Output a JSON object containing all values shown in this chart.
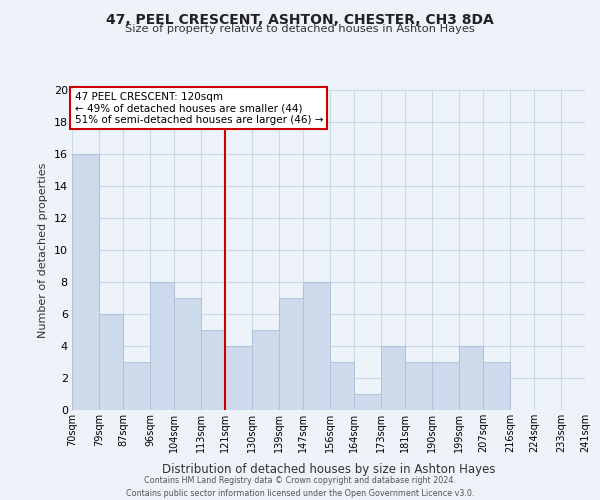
{
  "title": "47, PEEL CRESCENT, ASHTON, CHESTER, CH3 8DA",
  "subtitle": "Size of property relative to detached houses in Ashton Hayes",
  "xlabel": "Distribution of detached houses by size in Ashton Hayes",
  "ylabel": "Number of detached properties",
  "bins": [
    70,
    79,
    87,
    96,
    104,
    113,
    121,
    130,
    139,
    147,
    156,
    164,
    173,
    181,
    190,
    199,
    207,
    216,
    224,
    233,
    241
  ],
  "bin_labels": [
    "70sqm",
    "79sqm",
    "87sqm",
    "96sqm",
    "104sqm",
    "113sqm",
    "121sqm",
    "130sqm",
    "139sqm",
    "147sqm",
    "156sqm",
    "164sqm",
    "173sqm",
    "181sqm",
    "190sqm",
    "199sqm",
    "207sqm",
    "216sqm",
    "224sqm",
    "233sqm",
    "241sqm"
  ],
  "bar_heights": [
    16,
    6,
    3,
    8,
    7,
    5,
    4,
    5,
    7,
    8,
    3,
    1,
    4,
    3,
    3,
    4,
    3,
    0,
    0,
    0
  ],
  "bar_color": "#ccdaeb",
  "bar_edge_color": "#adc4dc",
  "grid_color": "#c8d8e8",
  "vline_x": 121,
  "vline_color": "#cc0000",
  "annotation_line1": "47 PEEL CRESCENT: 120sqm",
  "annotation_line2": "← 49% of detached houses are smaller (44)",
  "annotation_line3": "51% of semi-detached houses are larger (46) →",
  "annotation_box_color": "#ffffff",
  "annotation_box_edge": "#cc0000",
  "ylim": [
    0,
    20
  ],
  "yticks": [
    0,
    2,
    4,
    6,
    8,
    10,
    12,
    14,
    16,
    18,
    20
  ],
  "footer_line1": "Contains HM Land Registry data © Crown copyright and database right 2024.",
  "footer_line2": "Contains public sector information licensed under the Open Government Licence v3.0.",
  "bg_color": "#eef3f9",
  "plot_bg_color": "#eef3f9"
}
